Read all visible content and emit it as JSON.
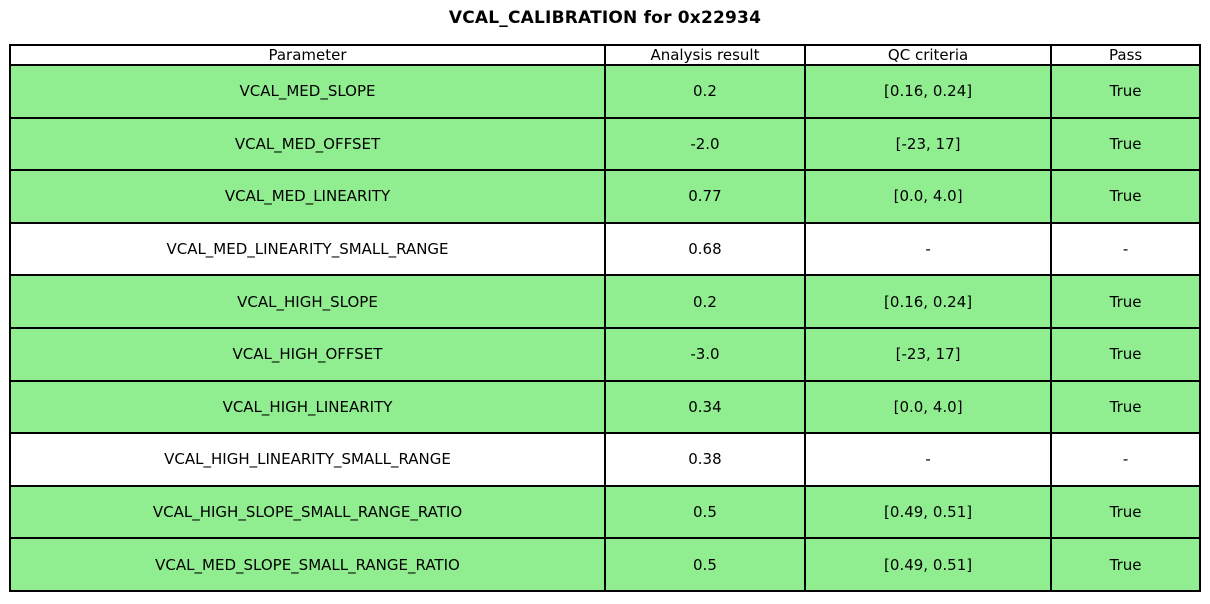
{
  "chart_data": {
    "type": "table",
    "title": "VCAL_CALIBRATION for 0x22934",
    "columns": [
      "Parameter",
      "Analysis result",
      "QC criteria",
      "Pass"
    ],
    "rows": [
      {
        "parameter": "VCAL_MED_SLOPE",
        "analysis_result": "0.2",
        "qc_criteria": "[0.16, 0.24]",
        "pass": "True",
        "highlighted": true
      },
      {
        "parameter": "VCAL_MED_OFFSET",
        "analysis_result": "-2.0",
        "qc_criteria": "[-23, 17]",
        "pass": "True",
        "highlighted": true
      },
      {
        "parameter": "VCAL_MED_LINEARITY",
        "analysis_result": "0.77",
        "qc_criteria": "[0.0, 4.0]",
        "pass": "True",
        "highlighted": true
      },
      {
        "parameter": "VCAL_MED_LINEARITY_SMALL_RANGE",
        "analysis_result": "0.68",
        "qc_criteria": "-",
        "pass": "-",
        "highlighted": false
      },
      {
        "parameter": "VCAL_HIGH_SLOPE",
        "analysis_result": "0.2",
        "qc_criteria": "[0.16, 0.24]",
        "pass": "True",
        "highlighted": true
      },
      {
        "parameter": "VCAL_HIGH_OFFSET",
        "analysis_result": "-3.0",
        "qc_criteria": "[-23, 17]",
        "pass": "True",
        "highlighted": true
      },
      {
        "parameter": "VCAL_HIGH_LINEARITY",
        "analysis_result": "0.34",
        "qc_criteria": "[0.0, 4.0]",
        "pass": "True",
        "highlighted": true
      },
      {
        "parameter": "VCAL_HIGH_LINEARITY_SMALL_RANGE",
        "analysis_result": "0.38",
        "qc_criteria": "-",
        "pass": "-",
        "highlighted": false
      },
      {
        "parameter": "VCAL_HIGH_SLOPE_SMALL_RANGE_RATIO",
        "analysis_result": "0.5",
        "qc_criteria": "[0.49, 0.51]",
        "pass": "True",
        "highlighted": true
      },
      {
        "parameter": "VCAL_MED_SLOPE_SMALL_RANGE_RATIO",
        "analysis_result": "0.5",
        "qc_criteria": "[0.49, 0.51]",
        "pass": "True",
        "highlighted": true
      }
    ],
    "layout": {
      "highlight_color": "#90EE90",
      "border_color": "#000000",
      "background_color": "#ffffff",
      "text_color": "#000000",
      "legend": false
    }
  }
}
